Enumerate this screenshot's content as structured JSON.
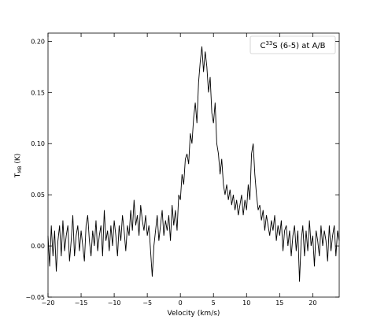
{
  "chart_data": {
    "type": "line",
    "ylabel_parts": [
      "T",
      "MB",
      " (K)"
    ],
    "xlabel": "Velocity (km/s)",
    "legend_parts": [
      "C",
      "33",
      "S (6-5) at A/B"
    ],
    "color": "#000000",
    "xlim": [
      -20,
      24
    ],
    "ylim": [
      -0.05,
      0.208
    ],
    "xticks": [
      {
        "value": -20,
        "label": "−20"
      },
      {
        "value": -15,
        "label": "−15"
      },
      {
        "value": -10,
        "label": "−10"
      },
      {
        "value": -5,
        "label": "−5"
      },
      0,
      5,
      10,
      15,
      20
    ],
    "yticks": [
      {
        "value": -0.05,
        "label": "−0.05"
      },
      {
        "value": 0,
        "label": "0.00"
      },
      0.05,
      {
        "value": 0.1,
        "label": "0.10"
      },
      0.15,
      {
        "value": 0.2,
        "label": "0.20"
      }
    ],
    "x": [
      -20,
      -19.75,
      -19.5,
      -19.25,
      -19,
      -18.75,
      -18.5,
      -18.25,
      -18,
      -17.75,
      -17.5,
      -17.25,
      -17,
      -16.75,
      -16.5,
      -16.25,
      -16,
      -15.75,
      -15.5,
      -15.25,
      -15,
      -14.75,
      -14.5,
      -14.25,
      -14,
      -13.75,
      -13.5,
      -13.25,
      -13,
      -12.75,
      -12.5,
      -12.25,
      -12,
      -11.75,
      -11.5,
      -11.25,
      -11,
      -10.75,
      -10.5,
      -10.25,
      -10,
      -9.75,
      -9.5,
      -9.25,
      -9,
      -8.75,
      -8.5,
      -8.25,
      -8,
      -7.75,
      -7.5,
      -7.25,
      -7,
      -6.75,
      -6.5,
      -6.25,
      -6,
      -5.75,
      -5.5,
      -5.25,
      -5,
      -4.75,
      -4.5,
      -4.25,
      -4,
      -3.75,
      -3.5,
      -3.25,
      -3,
      -2.75,
      -2.5,
      -2.25,
      -2,
      -1.75,
      -1.5,
      -1.25,
      -1,
      -0.75,
      -0.5,
      -0.25,
      0,
      0.25,
      0.5,
      0.75,
      1,
      1.25,
      1.5,
      1.75,
      2,
      2.25,
      2.5,
      2.75,
      3,
      3.25,
      3.5,
      3.75,
      4,
      4.25,
      4.5,
      4.75,
      5,
      5.25,
      5.5,
      5.75,
      6,
      6.25,
      6.5,
      6.75,
      7,
      7.25,
      7.5,
      7.75,
      8,
      8.25,
      8.5,
      8.75,
      9,
      9.25,
      9.5,
      9.75,
      10,
      10.25,
      10.5,
      10.75,
      11,
      11.25,
      11.5,
      11.75,
      12,
      12.25,
      12.5,
      12.75,
      13,
      13.25,
      13.5,
      13.75,
      14,
      14.25,
      14.5,
      14.75,
      15,
      15.25,
      15.5,
      15.75,
      16,
      16.25,
      16.5,
      16.75,
      17,
      17.25,
      17.5,
      17.75,
      18,
      18.25,
      18.5,
      18.75,
      19,
      19.25,
      19.5,
      19.75,
      20,
      20.25,
      20.5,
      20.75,
      21,
      21.25,
      21.5,
      21.75,
      22,
      22.25,
      22.5,
      22.75,
      23,
      23.25,
      23.5,
      23.75,
      24
    ],
    "values": [
      0.01,
      -0.02,
      0.02,
      -0.01,
      0.015,
      -0.025,
      0.005,
      0.02,
      -0.01,
      0.025,
      -0.005,
      0.01,
      0.02,
      -0.015,
      0.005,
      0.03,
      -0.01,
      0.01,
      0.02,
      -0.005,
      0.015,
      0.0,
      -0.015,
      0.02,
      0.03,
      0.005,
      -0.01,
      0.015,
      0.0,
      0.025,
      -0.005,
      0.01,
      0.02,
      -0.01,
      0.035,
      0.005,
      0.015,
      -0.005,
      0.02,
      0.0,
      0.025,
      0.01,
      -0.01,
      0.02,
      0.005,
      0.03,
      0.015,
      -0.005,
      0.02,
      0.01,
      0.035,
      0.015,
      0.045,
      0.02,
      0.03,
      0.01,
      0.04,
      0.025,
      0.015,
      0.03,
      0.01,
      0.02,
      -0.005,
      -0.03,
      0.0,
      0.015,
      0.03,
      0.005,
      0.02,
      0.035,
      0.01,
      0.025,
      0.015,
      0.03,
      0.005,
      0.04,
      0.02,
      0.035,
      0.015,
      0.05,
      0.045,
      0.07,
      0.06,
      0.085,
      0.09,
      0.08,
      0.11,
      0.1,
      0.125,
      0.14,
      0.12,
      0.16,
      0.18,
      0.195,
      0.17,
      0.19,
      0.175,
      0.15,
      0.165,
      0.13,
      0.12,
      0.14,
      0.1,
      0.09,
      0.07,
      0.085,
      0.06,
      0.05,
      0.06,
      0.045,
      0.055,
      0.04,
      0.05,
      0.035,
      0.045,
      0.03,
      0.04,
      0.05,
      0.03,
      0.045,
      0.035,
      0.06,
      0.045,
      0.09,
      0.1,
      0.07,
      0.05,
      0.035,
      0.04,
      0.025,
      0.035,
      0.015,
      0.03,
      0.02,
      0.01,
      0.025,
      0.015,
      0.03,
      0.005,
      0.02,
      0.01,
      0.025,
      -0.005,
      0.015,
      0.02,
      0.0,
      0.015,
      -0.01,
      0.01,
      0.02,
      -0.005,
      0.015,
      -0.035,
      0.005,
      0.02,
      -0.01,
      0.015,
      -0.005,
      0.025,
      0.0,
      0.01,
      -0.02,
      0.015,
      0.005,
      -0.01,
      0.02,
      0.0,
      0.015,
      0.005,
      -0.015,
      0.02,
      -0.005,
      0.01,
      0.02,
      -0.01,
      0.015,
      0.005
    ]
  }
}
